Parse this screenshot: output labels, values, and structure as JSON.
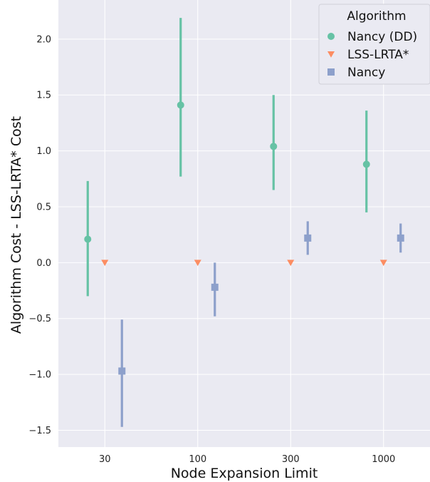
{
  "chart_data": {
    "type": "pointplot",
    "xlabel": "Node Expansion Limit",
    "ylabel": "Algorithm Cost - LSS-LRTA* Cost",
    "categories": [
      "30",
      "100",
      "300",
      "1000"
    ],
    "ylim": [
      -1.65,
      2.35
    ],
    "yticks": [
      -1.5,
      -1.0,
      -0.5,
      0.0,
      0.5,
      1.0,
      1.5,
      2.0
    ],
    "ytick_labels": [
      "−1.5",
      "−1.0",
      "−0.5",
      "0.0",
      "0.5",
      "1.0",
      "1.5",
      "2.0"
    ],
    "grid": true,
    "background": "#eaeaf2",
    "legend": {
      "title": "Algorithm",
      "placement": "top-right"
    },
    "series": [
      {
        "name": "Nancy (DD)",
        "marker": "circle",
        "color": "#66c2a5",
        "values": [
          0.21,
          1.41,
          1.04,
          0.88
        ],
        "ci_low": [
          -0.3,
          0.77,
          0.65,
          0.45
        ],
        "ci_high": [
          0.73,
          2.19,
          1.5,
          1.36
        ]
      },
      {
        "name": "LSS-LRTA*",
        "marker": "triangle-down",
        "color": "#fc8d62",
        "values": [
          0.0,
          0.0,
          0.0,
          0.0
        ],
        "ci_low": [
          0.0,
          0.0,
          0.0,
          0.0
        ],
        "ci_high": [
          0.0,
          0.0,
          0.0,
          0.0
        ]
      },
      {
        "name": "Nancy",
        "marker": "square",
        "color": "#8da0cb",
        "values": [
          -0.97,
          -0.22,
          0.22,
          0.22
        ],
        "ci_low": [
          -1.47,
          -0.48,
          0.07,
          0.09
        ],
        "ci_high": [
          -0.51,
          0.0,
          0.37,
          0.35
        ]
      }
    ]
  }
}
